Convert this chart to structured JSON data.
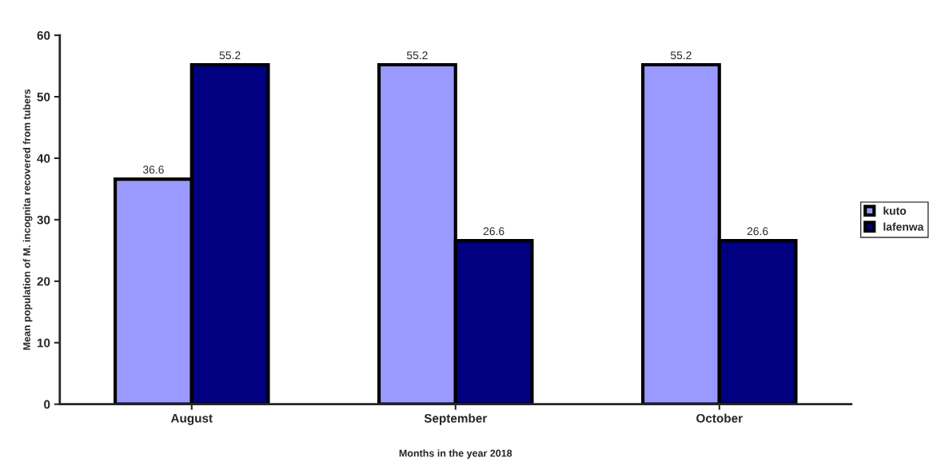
{
  "chart_data": {
    "type": "bar",
    "xlabel": "Months in the year 2018",
    "ylabel": "Mean population of M. incognita recovered from tubers",
    "categories": [
      "August",
      "September",
      "October"
    ],
    "series": [
      {
        "name": "kuto",
        "color": "#9999ff",
        "values": [
          36.6,
          55.2,
          55.2
        ]
      },
      {
        "name": "lafenwa",
        "color": "#000080",
        "values": [
          55.2,
          26.6,
          26.6
        ]
      }
    ],
    "ylim": [
      0,
      60
    ],
    "yticks": [
      0,
      10,
      20,
      30,
      40,
      50,
      60
    ],
    "data_labels": true,
    "grid": false,
    "legend": "right"
  }
}
